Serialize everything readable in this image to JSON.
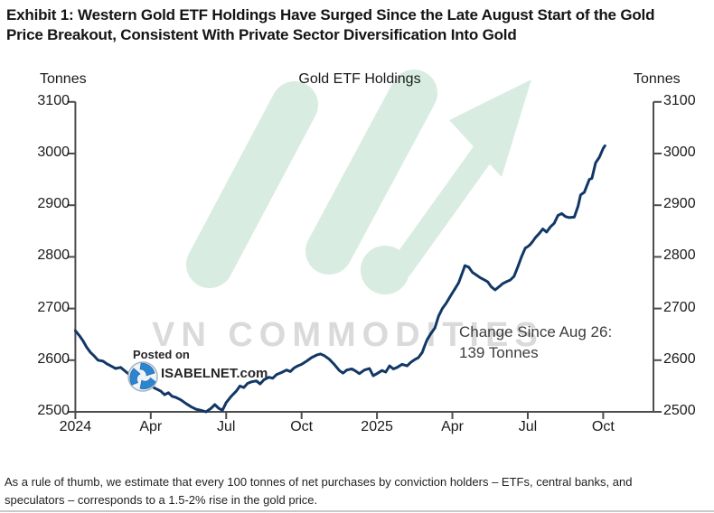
{
  "header": {
    "title_lines": [
      "Exhibit 1: Western Gold ETF Holdings Have Surged Since the Late August Start of the Gold",
      "Price Breakout, Consistent With Private Sector Diversification Into Gold"
    ]
  },
  "chart": {
    "title": "Gold ETF Holdings",
    "left_axis_unit": "Tonnes",
    "right_axis_unit": "Tonnes",
    "y_ticks": [
      "3100",
      "3000",
      "2900",
      "2800",
      "2700",
      "2600",
      "2500"
    ],
    "x_ticks": [
      "2024",
      "Apr",
      "Jul",
      "Oct",
      "2025",
      "Apr",
      "Jul",
      "Oct"
    ],
    "annotation_line1": "Change Since Aug 26:",
    "annotation_line2": "139 Tonnes",
    "watermark_text": "VN COMMODITIES",
    "posted_on": "Posted on",
    "source": "ISABELNET.com"
  },
  "footer": {
    "note_lines": [
      "As a rule of thumb, we estimate that every 100 tonnes of net purchases by conviction holders – ETFs, central banks, and",
      "speculators – corresponds to a 1.5-2% rise in the gold price."
    ]
  },
  "chart_data": {
    "type": "line",
    "title": "Gold ETF Holdings",
    "ylabel": "Tonnes",
    "ylim": [
      2500,
      3100
    ],
    "grid": false,
    "legend": "none",
    "x_unit": "months since Jan 2024",
    "xlim": [
      0,
      23
    ],
    "x_tick_months": [
      0,
      3,
      6,
      9,
      12,
      15,
      18,
      21
    ],
    "x_tick_labels": [
      "2024",
      "Apr",
      "Jul",
      "Oct",
      "2025",
      "Apr",
      "Jul",
      "Oct"
    ],
    "annotation": "Change Since Aug 26: 139 Tonnes",
    "series": [
      {
        "name": "Western Gold ETF Holdings (tonnes)",
        "color": "#123766",
        "points": [
          [
            0,
            2657
          ],
          [
            0.15,
            2648
          ],
          [
            0.3,
            2638
          ],
          [
            0.45,
            2625
          ],
          [
            0.6,
            2615
          ],
          [
            0.75,
            2608
          ],
          [
            0.9,
            2600
          ],
          [
            1.1,
            2598
          ],
          [
            1.25,
            2593
          ],
          [
            1.45,
            2588
          ],
          [
            1.6,
            2584
          ],
          [
            1.8,
            2586
          ],
          [
            2,
            2578
          ],
          [
            2.15,
            2572
          ],
          [
            2.3,
            2563
          ],
          [
            2.45,
            2566
          ],
          [
            2.6,
            2561
          ],
          [
            2.8,
            2557
          ],
          [
            3,
            2550
          ],
          [
            3.2,
            2545
          ],
          [
            3.4,
            2540
          ],
          [
            3.55,
            2533
          ],
          [
            3.7,
            2537
          ],
          [
            3.85,
            2530
          ],
          [
            4,
            2528
          ],
          [
            4.2,
            2523
          ],
          [
            4.4,
            2516
          ],
          [
            4.6,
            2510
          ],
          [
            4.8,
            2505
          ],
          [
            5,
            2503
          ],
          [
            5.2,
            2500
          ],
          [
            5.4,
            2507
          ],
          [
            5.55,
            2514
          ],
          [
            5.7,
            2507
          ],
          [
            5.85,
            2503
          ],
          [
            6,
            2518
          ],
          [
            6.2,
            2530
          ],
          [
            6.4,
            2540
          ],
          [
            6.55,
            2550
          ],
          [
            6.7,
            2547
          ],
          [
            6.85,
            2555
          ],
          [
            7,
            2558
          ],
          [
            7.2,
            2560
          ],
          [
            7.35,
            2554
          ],
          [
            7.5,
            2562
          ],
          [
            7.7,
            2567
          ],
          [
            7.85,
            2565
          ],
          [
            8,
            2572
          ],
          [
            8.2,
            2576
          ],
          [
            8.4,
            2581
          ],
          [
            8.55,
            2578
          ],
          [
            8.7,
            2585
          ],
          [
            8.85,
            2589
          ],
          [
            9,
            2592
          ],
          [
            9.2,
            2598
          ],
          [
            9.4,
            2605
          ],
          [
            9.6,
            2610
          ],
          [
            9.75,
            2612
          ],
          [
            9.9,
            2609
          ],
          [
            10.1,
            2602
          ],
          [
            10.3,
            2592
          ],
          [
            10.5,
            2580
          ],
          [
            10.65,
            2575
          ],
          [
            10.8,
            2581
          ],
          [
            11,
            2583
          ],
          [
            11.15,
            2579
          ],
          [
            11.3,
            2574
          ],
          [
            11.5,
            2581
          ],
          [
            11.7,
            2584
          ],
          [
            11.85,
            2570
          ],
          [
            12,
            2574
          ],
          [
            12.2,
            2580
          ],
          [
            12.35,
            2577
          ],
          [
            12.5,
            2589
          ],
          [
            12.65,
            2583
          ],
          [
            12.8,
            2586
          ],
          [
            13,
            2592
          ],
          [
            13.2,
            2589
          ],
          [
            13.35,
            2596
          ],
          [
            13.5,
            2601
          ],
          [
            13.65,
            2605
          ],
          [
            13.8,
            2615
          ],
          [
            13.9,
            2628
          ],
          [
            14,
            2640
          ],
          [
            14.15,
            2652
          ],
          [
            14.3,
            2662
          ],
          [
            14.45,
            2685
          ],
          [
            14.6,
            2700
          ],
          [
            14.75,
            2710
          ],
          [
            14.9,
            2722
          ],
          [
            15,
            2730
          ],
          [
            15.1,
            2738
          ],
          [
            15.25,
            2750
          ],
          [
            15.4,
            2770
          ],
          [
            15.5,
            2783
          ],
          [
            15.65,
            2780
          ],
          [
            15.8,
            2770
          ],
          [
            15.95,
            2765
          ],
          [
            16.1,
            2760
          ],
          [
            16.25,
            2756
          ],
          [
            16.4,
            2752
          ],
          [
            16.55,
            2742
          ],
          [
            16.7,
            2736
          ],
          [
            16.85,
            2742
          ],
          [
            17,
            2748
          ],
          [
            17.15,
            2752
          ],
          [
            17.3,
            2755
          ],
          [
            17.45,
            2762
          ],
          [
            17.6,
            2780
          ],
          [
            17.75,
            2800
          ],
          [
            17.9,
            2817
          ],
          [
            18,
            2820
          ],
          [
            18.1,
            2824
          ],
          [
            18.2,
            2830
          ],
          [
            18.3,
            2837
          ],
          [
            18.45,
            2845
          ],
          [
            18.6,
            2854
          ],
          [
            18.75,
            2848
          ],
          [
            18.9,
            2858
          ],
          [
            19.05,
            2865
          ],
          [
            19.2,
            2880
          ],
          [
            19.35,
            2884
          ],
          [
            19.5,
            2878
          ],
          [
            19.65,
            2876
          ],
          [
            19.85,
            2877
          ],
          [
            20,
            2898
          ],
          [
            20.1,
            2920
          ],
          [
            20.25,
            2925
          ],
          [
            20.45,
            2950
          ],
          [
            20.55,
            2952
          ],
          [
            20.7,
            2982
          ],
          [
            20.85,
            2993
          ],
          [
            21,
            3010
          ],
          [
            21.07,
            3015
          ]
        ]
      }
    ]
  }
}
